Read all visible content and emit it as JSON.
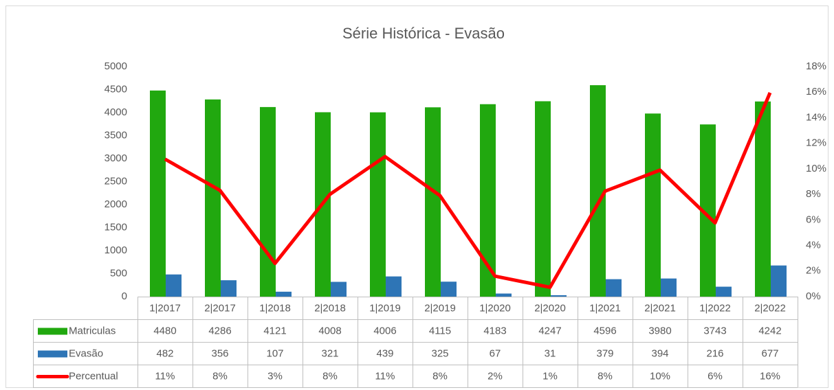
{
  "chart_data": {
    "type": "bar-line-table",
    "title": "Série Histórica - Evasão",
    "categories": [
      "1|2017",
      "2|2017",
      "1|2018",
      "2|2018",
      "1|2019",
      "2|2019",
      "1|2020",
      "2|2020",
      "1|2021",
      "2|2021",
      "1|2022",
      "2|2022"
    ],
    "series": [
      {
        "name": "Matriculas",
        "type": "bar",
        "color": "#21a80f",
        "values": [
          4480,
          4286,
          4121,
          4008,
          4006,
          4115,
          4183,
          4247,
          4596,
          3980,
          3743,
          4242
        ]
      },
      {
        "name": "Evasão",
        "type": "bar",
        "color": "#2e75b6",
        "values": [
          482,
          356,
          107,
          321,
          439,
          325,
          67,
          31,
          379,
          394,
          216,
          677
        ]
      },
      {
        "name": "Percentual",
        "type": "line",
        "axis": "y2",
        "color": "#ff0000",
        "values": [
          10.76,
          8.31,
          2.6,
          8.01,
          10.96,
          7.9,
          1.6,
          0.73,
          8.25,
          9.9,
          5.77,
          15.96
        ],
        "value_labels": [
          "11%",
          "8%",
          "3%",
          "8%",
          "11%",
          "8%",
          "2%",
          "1%",
          "8%",
          "10%",
          "6%",
          "16%"
        ]
      }
    ],
    "ylim": [
      0,
      5000
    ],
    "yticks": [
      0,
      500,
      1000,
      1500,
      2000,
      2500,
      3000,
      3500,
      4000,
      4500,
      5000
    ],
    "y2lim": [
      0,
      18
    ],
    "y2ticks": [
      {
        "value": 0,
        "label": "0%"
      },
      {
        "value": 2,
        "label": "2%"
      },
      {
        "value": 4,
        "label": "4%"
      },
      {
        "value": 6,
        "label": "6%"
      },
      {
        "value": 8,
        "label": "8%"
      },
      {
        "value": 10,
        "label": "10%"
      },
      {
        "value": 12,
        "label": "12%"
      },
      {
        "value": 14,
        "label": "14%"
      },
      {
        "value": 16,
        "label": "16%"
      },
      {
        "value": 18,
        "label": "18%"
      }
    ],
    "data_table": true
  }
}
